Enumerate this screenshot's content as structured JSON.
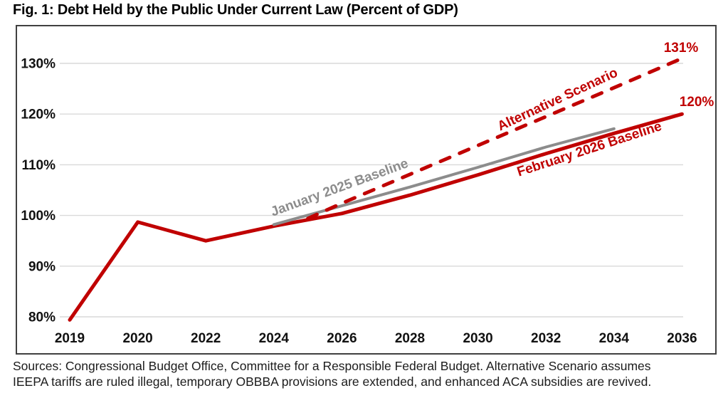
{
  "title": "Fig. 1: Debt Held by the Public Under Current Law (Percent of GDP)",
  "source_note": {
    "line1": "Sources: Congressional Budget Office, Committee for a Responsible Federal Budget. Alternative Scenario assumes",
    "line2": "IEEPA tariffs are ruled illegal, temporary OBBBA provisions are extended, and enhanced ACA subsidies are revived."
  },
  "colors": {
    "red": "#C00000",
    "gray": "#8C8C8C",
    "grid": "#D9D9D9",
    "axis_text": "#111111",
    "frame": "#404040"
  },
  "chart_data": {
    "type": "line",
    "title": "Fig. 1: Debt Held by the Public Under Current Law (Percent of GDP)",
    "xlabel": "",
    "ylabel": "Percent of GDP",
    "ylim": [
      80,
      130
    ],
    "grid": "horizontal",
    "legend_position": "inline-labels",
    "x_tick_labels": [
      "2019",
      "2020",
      "2022",
      "2024",
      "2026",
      "2028",
      "2030",
      "2032",
      "2034",
      "2036"
    ],
    "y_ticks": [
      80,
      90,
      100,
      110,
      120,
      130
    ],
    "y_tick_labels": [
      "80%",
      "90%",
      "100%",
      "110%",
      "120%",
      "130%"
    ],
    "series": [
      {
        "name": "February 2026 Baseline",
        "line_style": "solid",
        "color": "#C00000",
        "width": 5,
        "points": [
          [
            2019,
            79.4
          ],
          [
            2020,
            98.7
          ],
          [
            2022,
            95.0
          ],
          [
            2024,
            97.9
          ],
          [
            2026,
            100.4
          ],
          [
            2028,
            104.0
          ],
          [
            2030,
            108.0
          ],
          [
            2032,
            112.2
          ],
          [
            2034,
            116.2
          ],
          [
            2036,
            120.0
          ]
        ]
      },
      {
        "name": "January 2025 Baseline",
        "line_style": "solid",
        "color": "#8C8C8C",
        "width": 4,
        "points": [
          [
            2024,
            98.2
          ],
          [
            2026,
            101.9
          ],
          [
            2028,
            105.6
          ],
          [
            2030,
            109.5
          ],
          [
            2032,
            113.5
          ],
          [
            2034,
            117.1
          ]
        ]
      },
      {
        "name": "Alternative Scenario",
        "line_style": "dashed",
        "color": "#C00000",
        "width": 5,
        "points": [
          [
            2025,
            99.4
          ],
          [
            2026,
            102.4
          ],
          [
            2028,
            108.1
          ],
          [
            2030,
            113.8
          ],
          [
            2032,
            119.5
          ],
          [
            2034,
            125.2
          ],
          [
            2036,
            131.0
          ]
        ]
      }
    ],
    "series_labels": [
      {
        "text": "January 2025 Baseline",
        "color": "#8C8C8C",
        "x": 455,
        "y": 232,
        "angle": -20
      },
      {
        "text": "Alternative Scenario",
        "color": "#C00000",
        "x": 762,
        "y": 108,
        "angle": -25
      },
      {
        "text": "February 2026 Baseline",
        "color": "#C00000",
        "x": 806,
        "y": 178,
        "angle": -18
      }
    ],
    "end_value_labels": [
      {
        "text": "131%",
        "color": "#C00000",
        "x": 933,
        "y": 36
      },
      {
        "text": "120%",
        "color": "#C00000",
        "x": 955,
        "y": 112
      }
    ]
  }
}
